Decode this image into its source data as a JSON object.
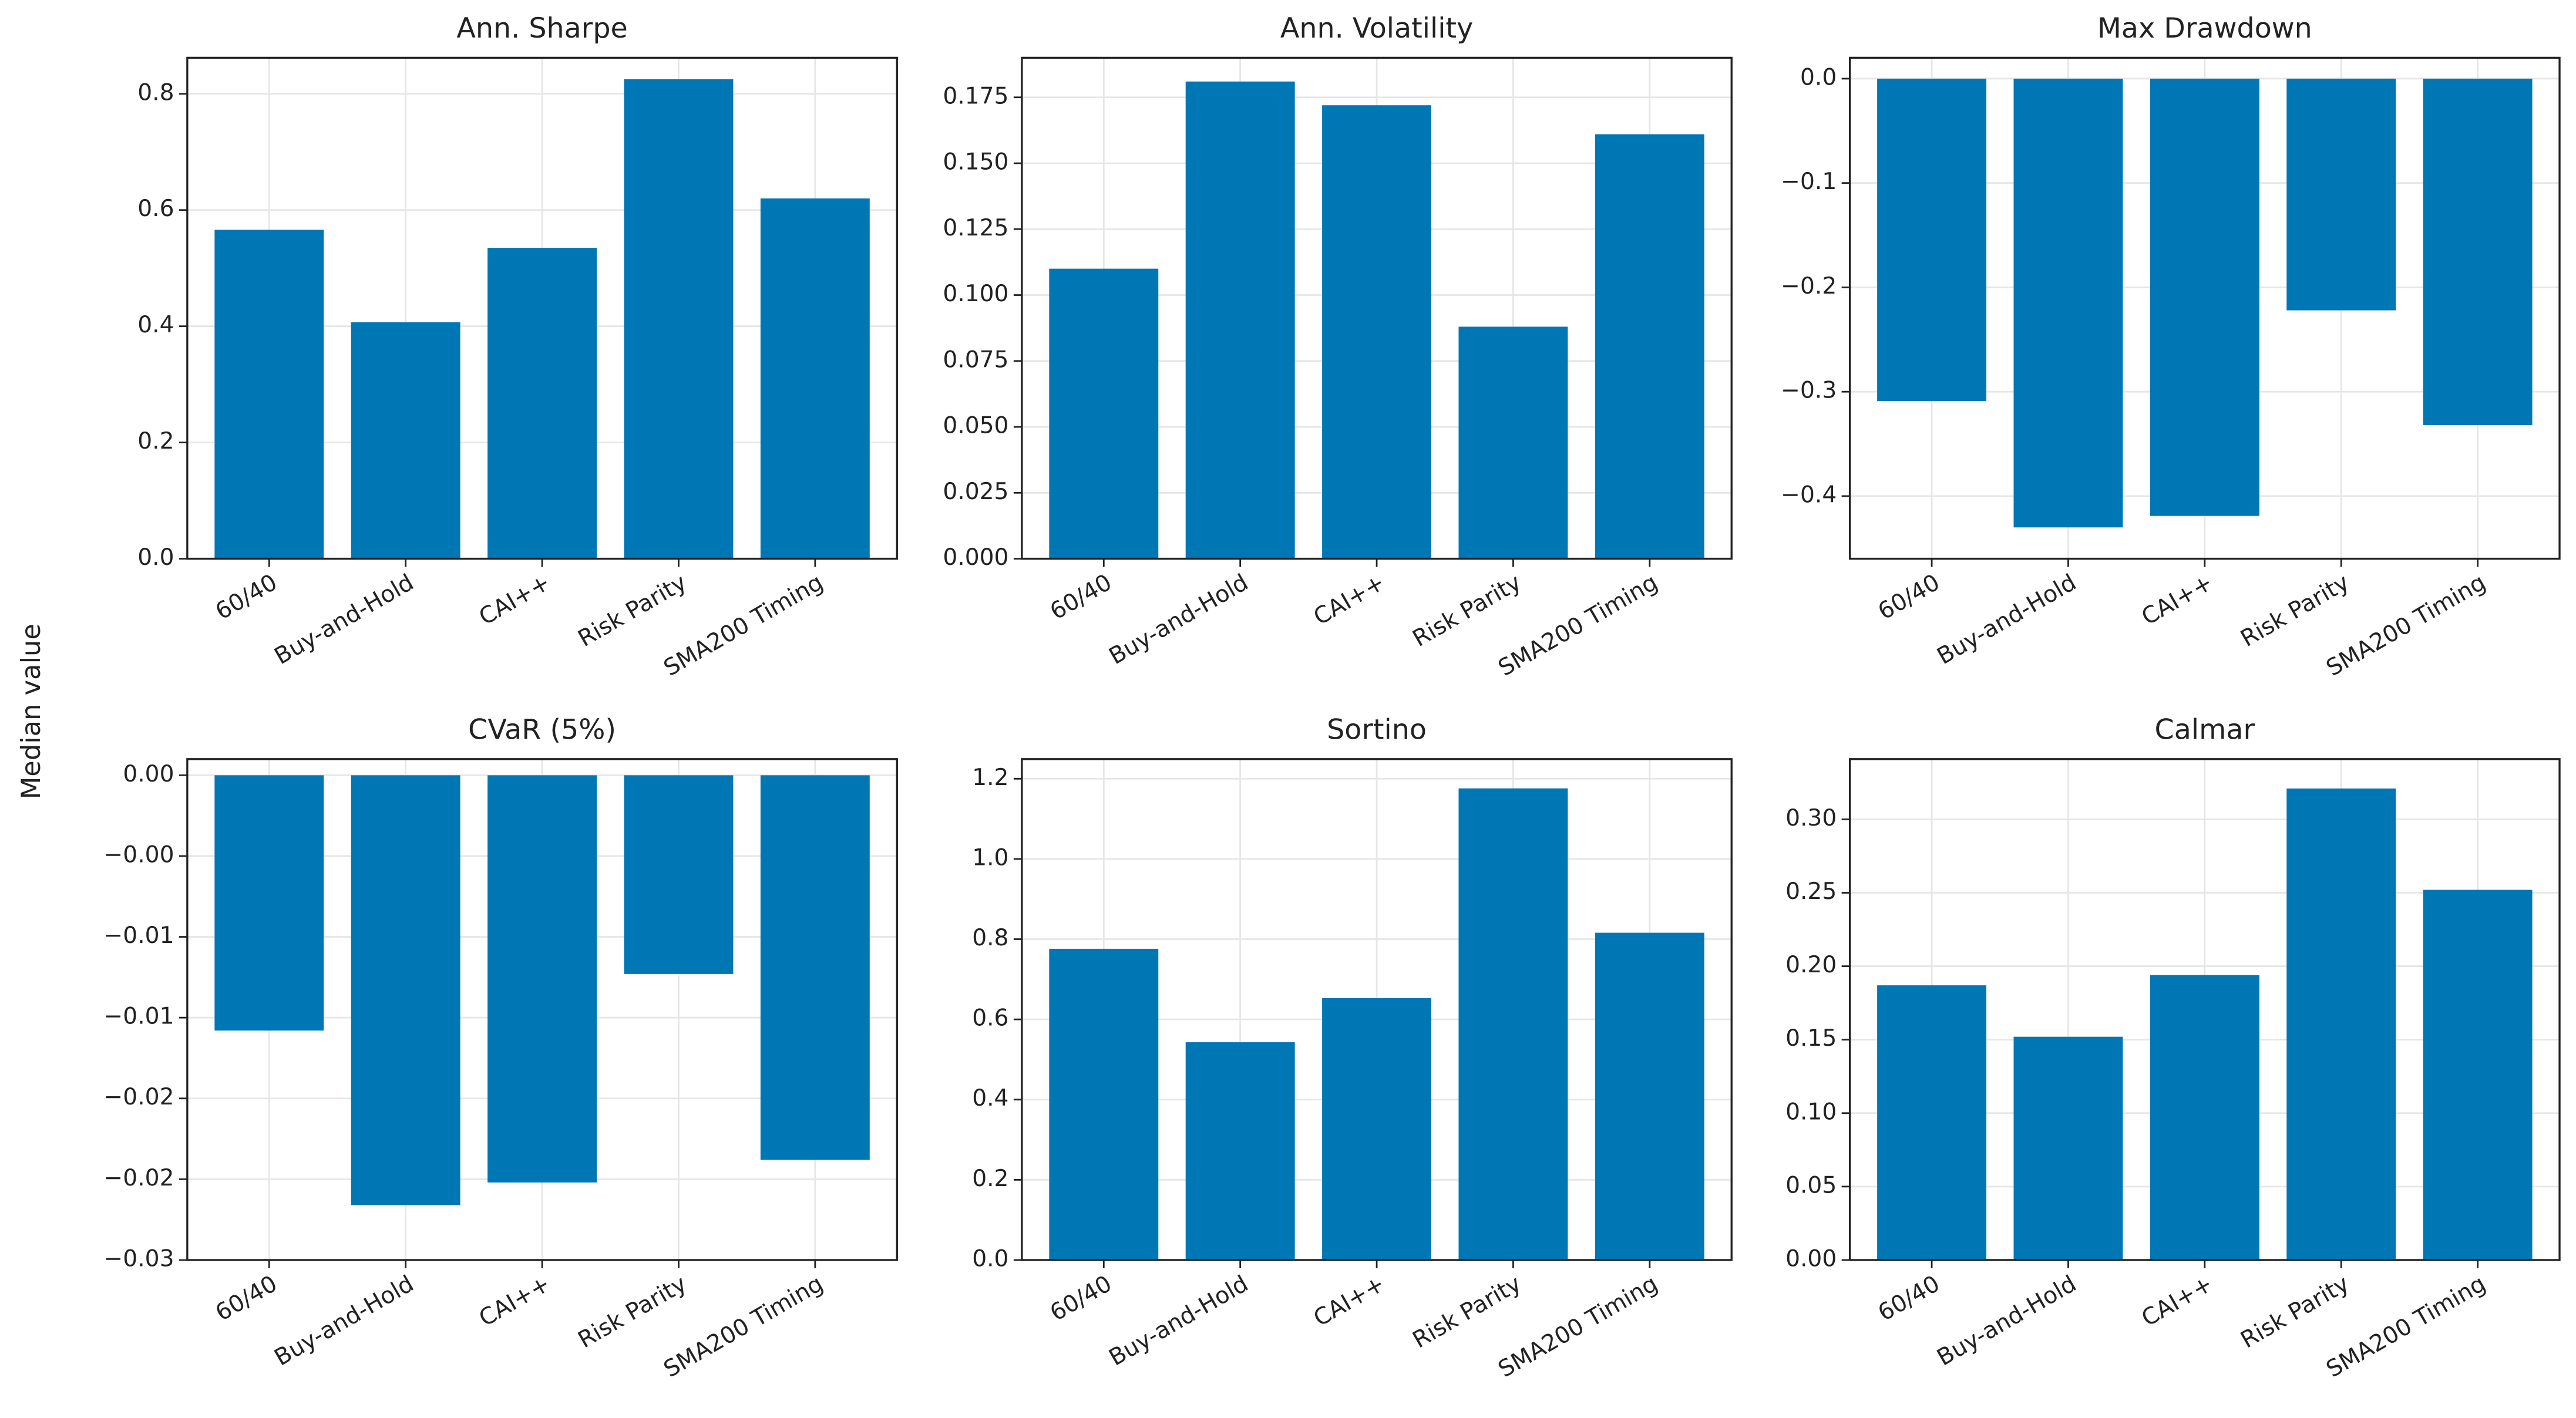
{
  "ylabel": "Median value",
  "chart_data": [
    {
      "type": "bar",
      "title": "Ann. Sharpe",
      "color": "#0077b5",
      "grid": true,
      "categories": [
        "60/40",
        "Buy-and-Hold",
        "CAI++",
        "Risk Parity",
        "SMA200 Timing"
      ],
      "values": [
        0.566,
        0.407,
        0.535,
        0.825,
        0.62
      ],
      "ylim": [
        0,
        0.862
      ],
      "yticks": [
        {
          "value": 0,
          "label": "0.0"
        },
        0.2,
        0.4,
        0.6,
        0.8
      ]
    },
    {
      "type": "bar",
      "title": "Ann. Volatility",
      "color": "#0077b5",
      "grid": true,
      "categories": [
        "60/40",
        "Buy-and-Hold",
        "CAI++",
        "Risk Parity",
        "SMA200 Timing"
      ],
      "values": [
        0.11,
        0.181,
        0.172,
        0.088,
        0.161
      ],
      "ylim": [
        0,
        0.19
      ],
      "yticks": [
        {
          "value": 0,
          "label": "0.000"
        },
        0.025,
        {
          "value": 0.05,
          "label": "0.050"
        },
        0.075,
        {
          "value": 0.1,
          "label": "0.100"
        },
        0.125,
        {
          "value": 0.15,
          "label": "0.150"
        },
        0.175
      ]
    },
    {
      "type": "bar",
      "title": "Max Drawdown",
      "color": "#0077b5",
      "grid": true,
      "categories": [
        "60/40",
        "Buy-and-Hold",
        "CAI++",
        "Risk Parity",
        "SMA200 Timing"
      ],
      "values": [
        -0.309,
        -0.43,
        -0.419,
        -0.222,
        -0.332
      ],
      "ylim": [
        -0.46,
        0.02
      ],
      "yticks": [
        {
          "value": 0,
          "label": "0.0"
        },
        {
          "value": -0.1,
          "label": "−0.1"
        },
        {
          "value": -0.2,
          "label": "−0.2"
        },
        {
          "value": -0.3,
          "label": "−0.3"
        },
        {
          "value": -0.4,
          "label": "−0.4"
        }
      ]
    },
    {
      "type": "bar",
      "title": "CVaR (5%)",
      "color": "#0077b5",
      "grid": true,
      "categories": [
        "60/40",
        "Buy-and-Hold",
        "CAI++",
        "Risk Parity",
        "SMA200 Timing"
      ],
      "values": [
        -0.0158,
        -0.0266,
        -0.0252,
        -0.0123,
        -0.0238
      ],
      "ylim": [
        -0.03,
        0.001
      ],
      "yticks": [
        {
          "value": 0,
          "label": "0.00"
        },
        {
          "value": -0.005,
          "label": "−0.00"
        },
        {
          "value": -0.01,
          "label": "−0.01"
        },
        {
          "value": -0.015,
          "label": "−0.01"
        },
        {
          "value": -0.02,
          "label": "−0.02"
        },
        {
          "value": -0.025,
          "label": "−0.02"
        },
        {
          "value": -0.03,
          "label": "−0.03"
        }
      ]
    },
    {
      "type": "bar",
      "title": "Sortino",
      "color": "#0077b5",
      "grid": true,
      "categories": [
        "60/40",
        "Buy-and-Hold",
        "CAI++",
        "Risk Parity",
        "SMA200 Timing"
      ],
      "values": [
        0.776,
        0.543,
        0.653,
        1.176,
        0.816
      ],
      "ylim": [
        0,
        1.249
      ],
      "yticks": [
        {
          "value": 0,
          "label": "0.0"
        },
        0.2,
        0.4,
        0.6,
        0.8,
        {
          "value": 1,
          "label": "1.0"
        },
        1.2
      ]
    },
    {
      "type": "bar",
      "title": "Calmar",
      "color": "#0077b5",
      "grid": true,
      "categories": [
        "60/40",
        "Buy-and-Hold",
        "CAI++",
        "Risk Parity",
        "SMA200 Timing"
      ],
      "values": [
        0.187,
        0.152,
        0.194,
        0.321,
        0.252
      ],
      "ylim": [
        0,
        0.341
      ],
      "yticks": [
        {
          "value": 0,
          "label": "0.00"
        },
        0.05,
        {
          "value": 0.1,
          "label": "0.10"
        },
        0.15,
        {
          "value": 0.2,
          "label": "0.20"
        },
        0.25,
        {
          "value": 0.3,
          "label": "0.30"
        }
      ]
    }
  ]
}
